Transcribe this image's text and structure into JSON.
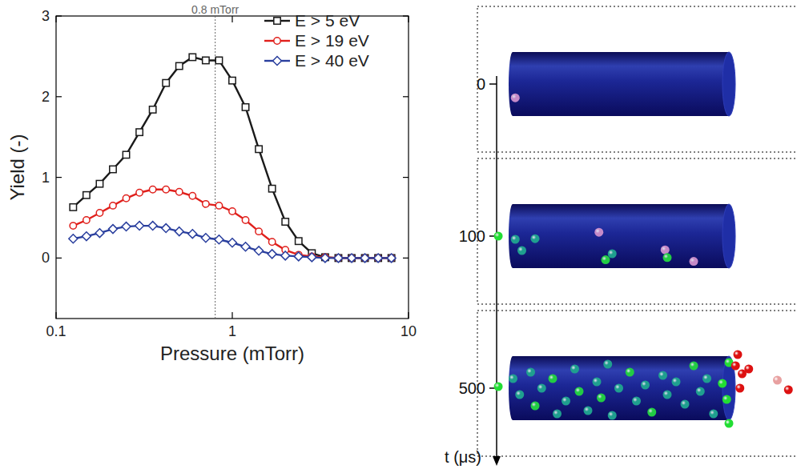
{
  "chart_data": {
    "type": "line",
    "x_label": "Pressure (mTorr)",
    "y_label": "Yield (-)",
    "x": [
      0.125,
      0.1487,
      0.1768,
      0.2102,
      0.25,
      0.2973,
      0.3536,
      0.4204,
      0.5,
      0.5946,
      0.7071,
      0.8409,
      1.0,
      1.189,
      1.414,
      1.682,
      2.0,
      2.378,
      2.828,
      3.364,
      4.0,
      4.757,
      5.657,
      6.727,
      8.0
    ],
    "series": [
      {
        "name": "E > 5 eV",
        "color": "#1a1a1a",
        "marker": "square",
        "values": [
          0.63,
          0.78,
          0.92,
          1.1,
          1.28,
          1.56,
          1.84,
          2.17,
          2.38,
          2.49,
          2.45,
          2.45,
          2.2,
          1.87,
          1.35,
          0.86,
          0.45,
          0.21,
          0.06,
          0.01,
          0,
          0,
          0,
          0,
          0
        ]
      },
      {
        "name": "E > 19 eV",
        "color": "#e0201c",
        "marker": "circle",
        "values": [
          0.4,
          0.47,
          0.56,
          0.65,
          0.74,
          0.81,
          0.85,
          0.85,
          0.82,
          0.77,
          0.67,
          0.65,
          0.58,
          0.47,
          0.33,
          0.2,
          0.1,
          0.04,
          0.02,
          0.01,
          0,
          0,
          0,
          0,
          0
        ]
      },
      {
        "name": "E > 40 eV",
        "color": "#2a3f9e",
        "marker": "diamond",
        "values": [
          0.24,
          0.27,
          0.31,
          0.36,
          0.39,
          0.4,
          0.4,
          0.37,
          0.33,
          0.3,
          0.25,
          0.23,
          0.19,
          0.14,
          0.09,
          0.05,
          0.03,
          0.02,
          0.01,
          0,
          0,
          0,
          0,
          0,
          0
        ]
      }
    ],
    "xlim": [
      0.1,
      10
    ],
    "ylim": [
      -0.75,
      3
    ],
    "xticks": [
      0.1,
      1,
      10
    ],
    "yticks": [
      0,
      1,
      2,
      3
    ],
    "log": "x",
    "legend": "upper right",
    "annotations": [
      {
        "text": "0.8 mTorr",
        "x": 0.8
      }
    ]
  },
  "snapshots": {
    "axis_label": "t (μs)",
    "times": [
      0,
      100,
      500
    ],
    "frames": [
      {
        "particles": [
          {
            "u": 0.03,
            "v": 0.43,
            "color": "#c58ac8"
          }
        ]
      },
      {
        "particles": [
          {
            "u": -0.047,
            "v": 0.0,
            "color": "#22dd33"
          },
          {
            "u": 0.03,
            "v": 0.1,
            "color": "#1f9f8f"
          },
          {
            "u": 0.12,
            "v": 0.08,
            "color": "#1f9f8f"
          },
          {
            "u": 0.06,
            "v": 0.45,
            "color": "#1f9f8f"
          },
          {
            "u": 0.41,
            "v": -0.12,
            "color": "#c58ac8"
          },
          {
            "u": 0.44,
            "v": 0.74,
            "color": "#22cc44"
          },
          {
            "u": 0.47,
            "v": 0.55,
            "color": "#1f9f8f"
          },
          {
            "u": 0.71,
            "v": 0.43,
            "color": "#c58ac8"
          },
          {
            "u": 0.72,
            "v": 0.67,
            "color": "#22cc44"
          },
          {
            "u": 0.84,
            "v": 0.79,
            "color": "#c58ac8"
          }
        ]
      },
      {
        "particles": [
          {
            "u": -0.047,
            "v": -0.05,
            "color": "#22dd33"
          },
          {
            "u": 0.02,
            "v": -0.3,
            "color": "#1f9f8f"
          },
          {
            "u": 0.05,
            "v": 0.2,
            "color": "#1f9f8f"
          },
          {
            "u": 0.1,
            "v": -0.5,
            "color": "#1f9f8f"
          },
          {
            "u": 0.12,
            "v": 0.55,
            "color": "#22cc44"
          },
          {
            "u": 0.15,
            "v": 0.0,
            "color": "#1f9f8f"
          },
          {
            "u": 0.2,
            "v": -0.3,
            "color": "#22cc44"
          },
          {
            "u": 0.22,
            "v": 0.8,
            "color": "#1f9f8f"
          },
          {
            "u": 0.26,
            "v": 0.4,
            "color": "#1f9f8f"
          },
          {
            "u": 0.3,
            "v": -0.6,
            "color": "#1f9f8f"
          },
          {
            "u": 0.32,
            "v": 0.1,
            "color": "#22cc44"
          },
          {
            "u": 0.36,
            "v": 0.7,
            "color": "#1f9f8f"
          },
          {
            "u": 0.4,
            "v": -0.2,
            "color": "#1f9f8f"
          },
          {
            "u": 0.42,
            "v": 0.3,
            "color": "#22cc44"
          },
          {
            "u": 0.45,
            "v": -0.75,
            "color": "#1f9f8f"
          },
          {
            "u": 0.47,
            "v": 0.85,
            "color": "#1f9f8f"
          },
          {
            "u": 0.5,
            "v": 0.0,
            "color": "#1f9f8f"
          },
          {
            "u": 0.55,
            "v": -0.5,
            "color": "#22cc44"
          },
          {
            "u": 0.58,
            "v": 0.4,
            "color": "#1f9f8f"
          },
          {
            "u": 0.62,
            "v": -0.1,
            "color": "#1f9f8f"
          },
          {
            "u": 0.65,
            "v": 0.75,
            "color": "#22cc44"
          },
          {
            "u": 0.7,
            "v": -0.4,
            "color": "#1f9f8f"
          },
          {
            "u": 0.72,
            "v": 0.2,
            "color": "#1f9f8f"
          },
          {
            "u": 0.76,
            "v": -0.2,
            "color": "#1f9f8f"
          },
          {
            "u": 0.8,
            "v": 0.5,
            "color": "#1f9f8f"
          },
          {
            "u": 0.84,
            "v": -0.7,
            "color": "#22cc44"
          },
          {
            "u": 0.87,
            "v": 0.1,
            "color": "#1f9f8f"
          },
          {
            "u": 0.9,
            "v": -0.3,
            "color": "#1f9f8f"
          },
          {
            "u": 0.93,
            "v": 0.8,
            "color": "#1f9f8f"
          },
          {
            "u": 0.97,
            "v": -0.15,
            "color": "#22dd33"
          },
          {
            "u": 0.99,
            "v": 0.35,
            "color": "#22dd33"
          },
          {
            "u": 1.0,
            "v": -0.8,
            "color": "#22dd33"
          },
          {
            "u": 1.0,
            "v": 1.1,
            "color": "#22dd33"
          },
          {
            "u": 1.04,
            "v": -1.05,
            "color": "#dd1111"
          },
          {
            "u": 1.03,
            "v": -0.7,
            "color": "#dd1111"
          },
          {
            "u": 1.06,
            "v": -0.45,
            "color": "#dd1111"
          },
          {
            "u": 1.09,
            "v": -0.6,
            "color": "#dd1111"
          },
          {
            "u": 1.05,
            "v": 0.0,
            "color": "#dd1111"
          },
          {
            "u": 1.22,
            "v": -0.25,
            "color": "#e8a0a0"
          },
          {
            "u": 1.27,
            "v": 0.05,
            "color": "#dd1111"
          }
        ]
      }
    ]
  }
}
